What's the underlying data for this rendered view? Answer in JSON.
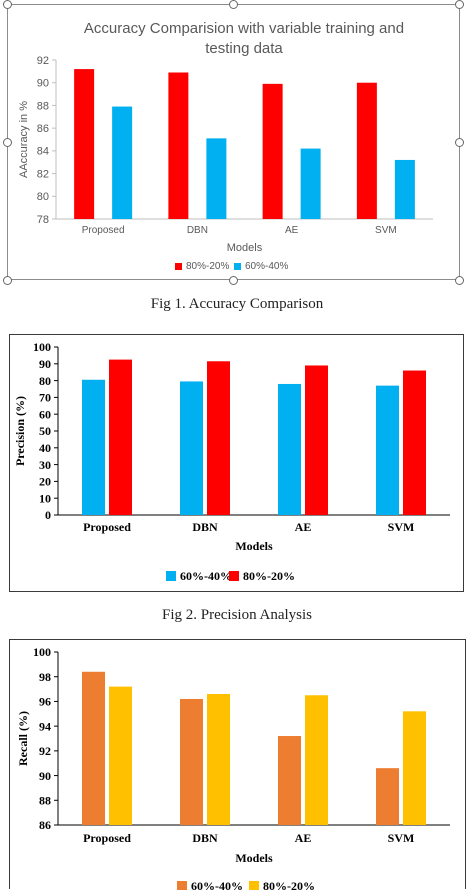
{
  "captions": {
    "fig1": "Fig 1. Accuracy Comparison",
    "fig2": "Fig 2. Precision Analysis"
  },
  "chart_data": [
    {
      "type": "bar",
      "title": "Accuracy Comparision with variable training and testing data",
      "title_lines": [
        "Accuracy Comparision with variable training and",
        "testing data"
      ],
      "xlabel": "Models",
      "ylabel": "AAccuracy in %",
      "categories": [
        "Proposed",
        "DBN",
        "AE",
        "SVM"
      ],
      "ylim": [
        78,
        92
      ],
      "yticks": [
        78,
        80,
        82,
        84,
        86,
        88,
        90,
        92
      ],
      "series": [
        {
          "name": "80%-20%",
          "color": "#ff0000",
          "values": [
            91.2,
            90.9,
            89.9,
            90.0
          ]
        },
        {
          "name": "60%-40%",
          "color": "#00b0f0",
          "values": [
            87.9,
            85.1,
            84.2,
            83.2
          ]
        }
      ],
      "grid": false,
      "legend": "bottom"
    },
    {
      "type": "bar",
      "title": "",
      "xlabel": "Models",
      "ylabel": "Precision (%)",
      "categories": [
        "Proposed",
        "DBN",
        "AE",
        "SVM"
      ],
      "ylim": [
        0,
        100
      ],
      "yticks": [
        0,
        10,
        20,
        30,
        40,
        50,
        60,
        70,
        80,
        90,
        100
      ],
      "series": [
        {
          "name": "60%-40%",
          "color": "#00b0f0",
          "values": [
            80.5,
            79.5,
            78.0,
            77.0
          ]
        },
        {
          "name": "80%-20%",
          "color": "#ff0000",
          "values": [
            92.5,
            91.5,
            89.0,
            86.0
          ]
        }
      ],
      "grid": false,
      "legend": "bottom"
    },
    {
      "type": "bar",
      "title": "",
      "xlabel": "Models",
      "ylabel": "Recall (%)",
      "categories": [
        "Proposed",
        "DBN",
        "AE",
        "SVM"
      ],
      "ylim": [
        86,
        100
      ],
      "yticks": [
        86,
        88,
        90,
        92,
        94,
        96,
        98,
        100
      ],
      "series": [
        {
          "name": "60%-40%",
          "color": "#ed7d31",
          "values": [
            98.4,
            96.2,
            93.2,
            90.6
          ]
        },
        {
          "name": "80%-20%",
          "color": "#ffc000",
          "values": [
            97.2,
            96.6,
            96.5,
            95.2
          ]
        }
      ],
      "grid": false,
      "legend": "bottom"
    }
  ]
}
